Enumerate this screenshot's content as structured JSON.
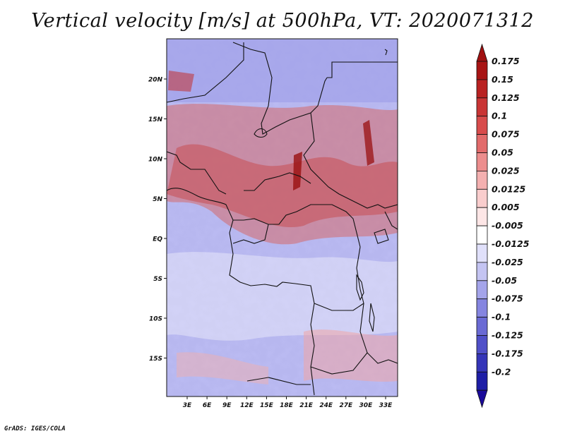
{
  "title": "Vertical velocity [m/s] at 500hPa, VT: 2020071312",
  "credit": "GrADS: IGES/COLA",
  "map": {
    "lat_labels": [
      "20N",
      "15N",
      "10N",
      "5N",
      "EQ",
      "5S",
      "10S",
      "15S"
    ],
    "lon_labels": [
      "3E",
      "6E",
      "9E",
      "12E",
      "15E",
      "18E",
      "21E",
      "24E",
      "27E",
      "30E",
      "33E"
    ]
  },
  "colorbar": {
    "top_arrow_color": "#a01010",
    "bottom_arrow_color": "#1a0a9a",
    "levels": [
      {
        "label": "0.175",
        "color": "#a81414"
      },
      {
        "label": "0.15",
        "color": "#b92222"
      },
      {
        "label": "0.125",
        "color": "#c93535"
      },
      {
        "label": "0.1",
        "color": "#d84c4c"
      },
      {
        "label": "0.075",
        "color": "#e26b6b"
      },
      {
        "label": "0.05",
        "color": "#ec8d8d"
      },
      {
        "label": "0.025",
        "color": "#f4b0b0"
      },
      {
        "label": "0.0125",
        "color": "#f9cdcd"
      },
      {
        "label": "0.005",
        "color": "#fde6e6"
      },
      {
        "label": "-0.005",
        "color": "#ffffff"
      },
      {
        "label": "-0.0125",
        "color": "#e0e0fa"
      },
      {
        "label": "-0.025",
        "color": "#c4c4f2"
      },
      {
        "label": "-0.05",
        "color": "#a4a4ea"
      },
      {
        "label": "-0.075",
        "color": "#8585e0"
      },
      {
        "label": "-0.1",
        "color": "#6a6ad4"
      },
      {
        "label": "-0.125",
        "color": "#5050c8"
      },
      {
        "label": "-0.175",
        "color": "#3535b8"
      },
      {
        "label": "-0.2",
        "color": "#1e1ea6"
      }
    ]
  }
}
